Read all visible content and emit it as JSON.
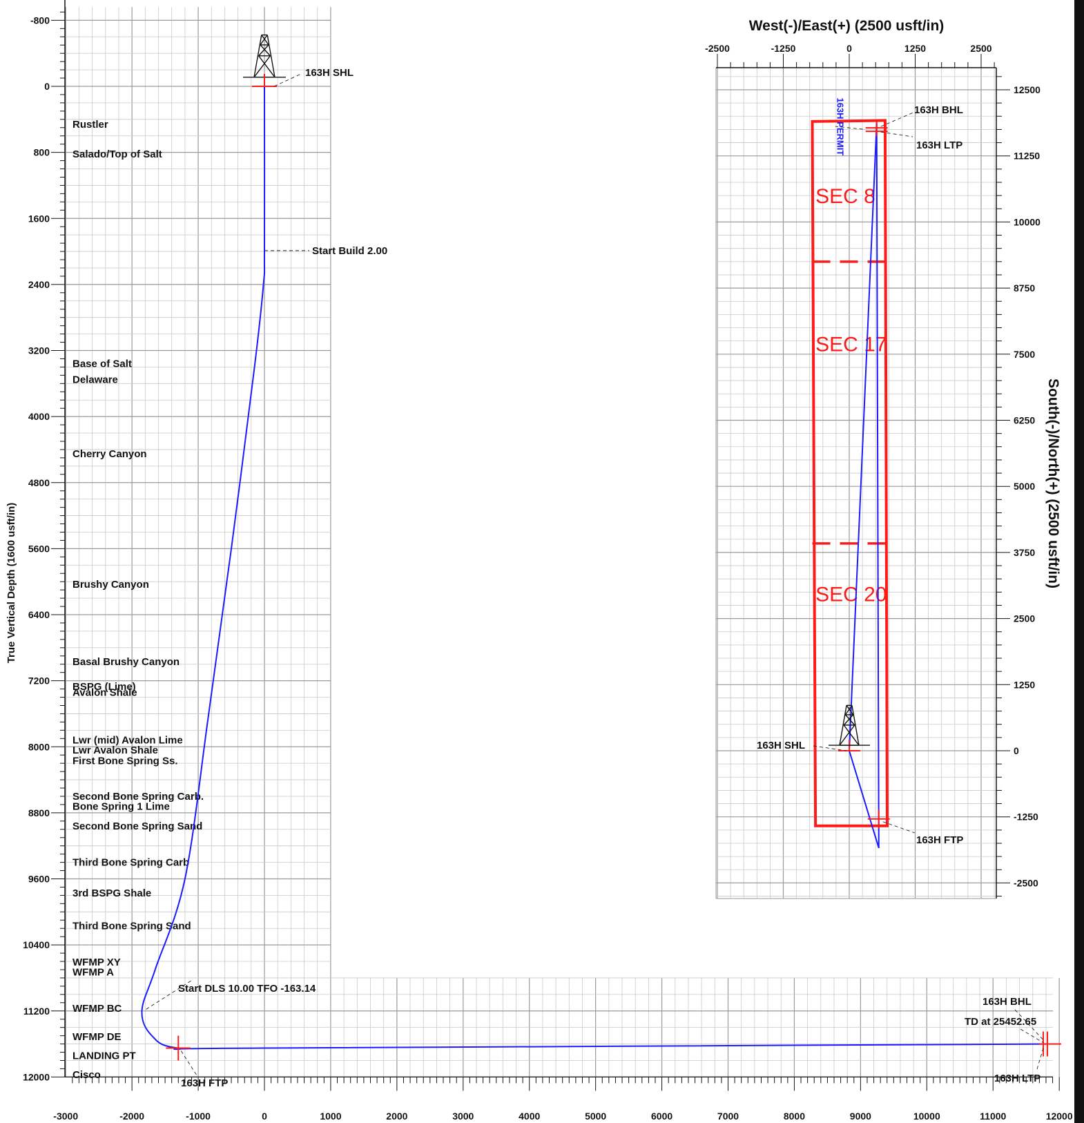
{
  "chart_data": [
    {
      "type": "line",
      "name": "vertical-section",
      "ylabel": "True Vertical Depth (1600 usft/in)",
      "xlabel": "",
      "xlim": [
        -3000,
        12000
      ],
      "ylim": [
        -800,
        12000
      ],
      "x_ticks": [
        -3000,
        -2000,
        -1000,
        0,
        1000,
        2000,
        3000,
        4000,
        5000,
        6000,
        7000,
        8000,
        9000,
        10000,
        11000,
        12000
      ],
      "y_ticks": [
        -800,
        0,
        800,
        1600,
        2400,
        3200,
        4000,
        4800,
        5600,
        6400,
        7200,
        8000,
        8800,
        9600,
        10400,
        11200,
        12000
      ],
      "wellpath": {
        "color": "#1a1aff",
        "points": [
          [
            0,
            0
          ],
          [
            0,
            1990
          ],
          [
            -15,
            2400
          ],
          [
            -150,
            3400
          ],
          [
            -500,
            5600
          ],
          [
            -850,
            7650
          ],
          [
            -1200,
            9600
          ],
          [
            -1650,
            10700
          ],
          [
            -1850,
            11200
          ],
          [
            -1700,
            11500
          ],
          [
            -1300,
            11650
          ],
          [
            0,
            11650
          ],
          [
            11800,
            11600
          ]
        ]
      },
      "formations": [
        {
          "name": "Rustler",
          "tvd": 460
        },
        {
          "name": "Salado/Top of Salt",
          "tvd": 820
        },
        {
          "name": "Base of Salt",
          "tvd": 3360
        },
        {
          "name": "Delaware",
          "tvd": 3550
        },
        {
          "name": "Cherry Canyon",
          "tvd": 4450
        },
        {
          "name": "Brushy Canyon",
          "tvd": 6030
        },
        {
          "name": "Basal Brushy Canyon",
          "tvd": 6970
        },
        {
          "name": "BSPG (Lime)",
          "tvd": 7270
        },
        {
          "name": "Avalon Shale",
          "tvd": 7340
        },
        {
          "name": "Lwr (mid) Avalon Lime",
          "tvd": 7920
        },
        {
          "name": "Lwr Avalon Shale",
          "tvd": 8040
        },
        {
          "name": "First Bone Spring Ss.",
          "tvd": 8170
        },
        {
          "name": "Second Bone Spring Carb.",
          "tvd": 8600
        },
        {
          "name": "Bone Spring 1 Lime",
          "tvd": 8720
        },
        {
          "name": "Second Bone Spring Sand",
          "tvd": 8960
        },
        {
          "name": "Third Bone Spring Carb",
          "tvd": 9400
        },
        {
          "name": "3rd BSPG Shale",
          "tvd": 9770
        },
        {
          "name": "Third Bone Spring Sand",
          "tvd": 10170
        },
        {
          "name": "WFMP XY",
          "tvd": 10610
        },
        {
          "name": "WFMP A",
          "tvd": 10730
        },
        {
          "name": "WFMP BC",
          "tvd": 11170
        },
        {
          "name": "WFMP DE",
          "tvd": 11510
        },
        {
          "name": "LANDING PT",
          "tvd": 11740
        },
        {
          "name": "Cisco",
          "tvd": 11970
        }
      ],
      "annotations": [
        {
          "text": "163H SHL",
          "x": 0,
          "y": 0
        },
        {
          "text": "Start Build 2.00",
          "x": 0,
          "y": 1990
        },
        {
          "text": "Start DLS 10.00 TFO -163.14",
          "x": -1850,
          "y": 11130
        },
        {
          "text": "163H FTP",
          "x": -1300,
          "y": 11650
        },
        {
          "text": "163H BHL",
          "x": 11800,
          "y": 11600
        },
        {
          "text": "TD at 25452.65",
          "x": 11800,
          "y": 11600
        },
        {
          "text": "163H LTP",
          "x": 11750,
          "y": 11600
        }
      ]
    },
    {
      "type": "line",
      "name": "plan-view",
      "xlabel": "West(-)/East(+) (2500 usft/in)",
      "ylabel": "South(-)/North(+) (2500 usft/in)",
      "xlim": [
        -2500,
        2500
      ],
      "ylim": [
        -2500,
        12500
      ],
      "x_ticks": [
        -2500,
        -1250,
        0,
        1250,
        2500
      ],
      "y_ticks": [
        -2500,
        -1250,
        0,
        1250,
        2500,
        3750,
        5000,
        6250,
        7500,
        8750,
        10000,
        11250,
        12500
      ],
      "wellpath": {
        "color": "#1a1aff",
        "label": "163H PERMIT",
        "points": [
          [
            0,
            0
          ],
          [
            560,
            -1840
          ],
          [
            520,
            11860
          ],
          [
            0,
            0
          ]
        ]
      },
      "sections": [
        {
          "label": "SEC 8"
        },
        {
          "label": "SEC 17"
        },
        {
          "label": "SEC 20"
        }
      ],
      "lease_box": {
        "color": "#ff1a1a",
        "corners": [
          [
            -700,
            11900
          ],
          [
            680,
            11920
          ],
          [
            720,
            -1420
          ],
          [
            -640,
            -1420
          ]
        ],
        "divider_lines_y": [
          9250,
          3920
        ]
      },
      "annotations": [
        {
          "text": "163H BHL",
          "x": 520,
          "y": 11860
        },
        {
          "text": "163H LTP",
          "x": 520,
          "y": 11780
        },
        {
          "text": "163H SHL",
          "x": 0,
          "y": 0
        },
        {
          "text": "163H FTP",
          "x": 560,
          "y": -1290
        }
      ]
    }
  ]
}
